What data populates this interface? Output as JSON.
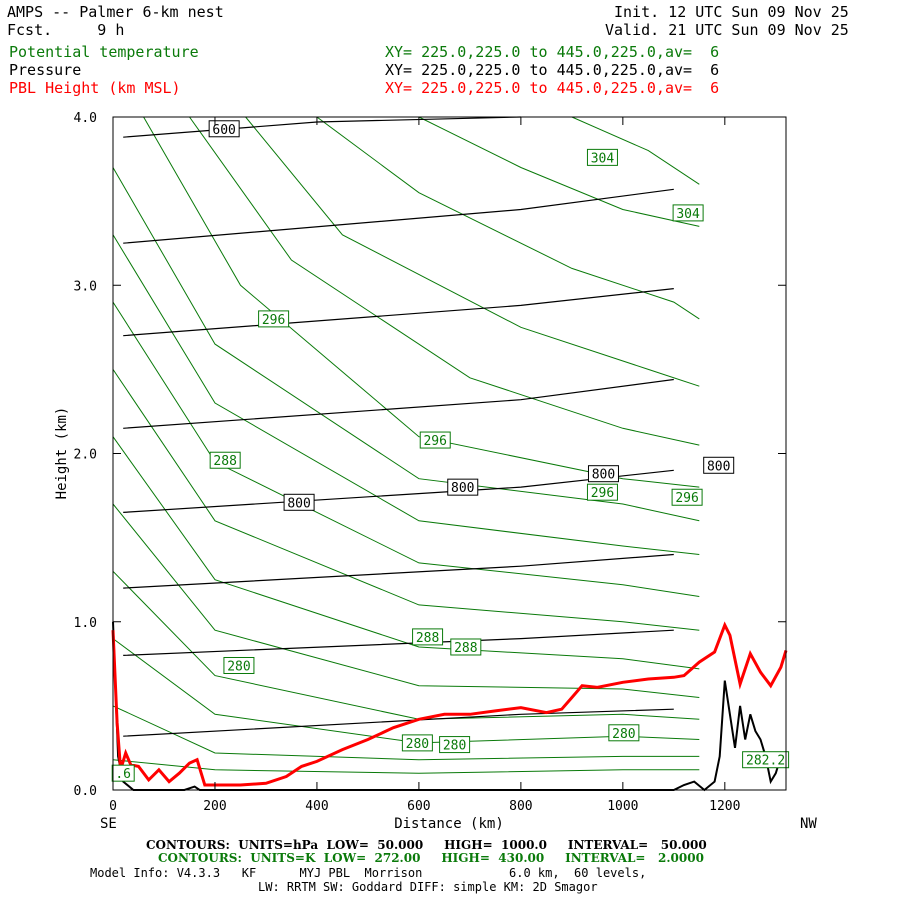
{
  "header": {
    "title": "AMPS -- Palmer 6-km nest",
    "fcst": "Fcst.     9 h",
    "init": "Init. 12 UTC Sun 09 Nov 25",
    "valid": "Valid. 21 UTC Sun 09 Nov 25"
  },
  "legend": [
    {
      "name": "Potential temperature",
      "xy": "XY= 225.0,225.0 to 445.0,225.0,av=  6",
      "color": "#0a7a0a"
    },
    {
      "name": "Pressure",
      "xy": "XY= 225.0,225.0 to 445.0,225.0,av=  6",
      "color": "#000000"
    },
    {
      "name": "PBL Height (km MSL)",
      "xy": "XY= 225.0,225.0 to 445.0,225.0,av=  6",
      "color": "#ff0000"
    }
  ],
  "footer": {
    "pressure_contours": "CONTOURS:  UNITS=hPa  LOW=  50.000     HIGH=  1000.0     INTERVAL=   50.000",
    "theta_contours": "CONTOURS:  UNITS=K  LOW=  272.00     HIGH=  430.00     INTERVAL=   2.0000",
    "model_info": "Model Info: V4.3.3   KF      MYJ PBL  Morrison            6.0 km,  60 levels,",
    "model_info2": "LW: RRTM SW: Goddard DIFF: simple KM: 2D Smagor"
  },
  "chart_data": {
    "type": "line",
    "title": "AMPS -- Palmer 6-km nest",
    "xlabel": "Distance (km)",
    "ylabel": "Height (km)",
    "xlim": [
      0,
      1320
    ],
    "ylim": [
      0,
      4
    ],
    "x_ticks": [
      0,
      200,
      400,
      600,
      800,
      1000,
      1200
    ],
    "x_tick_labels": [
      "0",
      "200",
      "400",
      "600",
      "800",
      "1000",
      "1200"
    ],
    "y_ticks": [
      0,
      1,
      2,
      3,
      4
    ],
    "y_tick_labels": [
      "0.0",
      "1.0",
      "2.0",
      "3.0",
      "4.0"
    ],
    "x_end_labels": {
      "left": "SE",
      "right": "NW"
    },
    "pbl_height": {
      "name": "PBL Height (km MSL)",
      "color": "#ff0000",
      "x": [
        0,
        8,
        15,
        25,
        35,
        50,
        70,
        90,
        110,
        130,
        150,
        165,
        180,
        200,
        250,
        300,
        340,
        370,
        400,
        450,
        500,
        550,
        600,
        650,
        700,
        750,
        800,
        850,
        880,
        900,
        920,
        950,
        1000,
        1050,
        1100,
        1120,
        1150,
        1180,
        1200,
        1210,
        1230,
        1250,
        1270,
        1290,
        1310,
        1320
      ],
      "y": [
        0.95,
        0.4,
        0.12,
        0.22,
        0.15,
        0.14,
        0.06,
        0.12,
        0.05,
        0.1,
        0.16,
        0.18,
        0.03,
        0.03,
        0.03,
        0.04,
        0.08,
        0.14,
        0.17,
        0.24,
        0.3,
        0.37,
        0.42,
        0.45,
        0.45,
        0.47,
        0.49,
        0.46,
        0.48,
        0.55,
        0.62,
        0.61,
        0.64,
        0.66,
        0.67,
        0.68,
        0.76,
        0.82,
        0.98,
        0.92,
        0.63,
        0.81,
        0.7,
        0.62,
        0.73,
        0.83
      ]
    },
    "terrain": {
      "color": "#000000",
      "x": [
        0,
        5,
        10,
        20,
        40,
        60,
        80,
        100,
        120,
        140,
        160,
        170,
        180,
        200,
        1100,
        1120,
        1140,
        1160,
        1180,
        1190,
        1200,
        1210,
        1220,
        1230,
        1240,
        1250,
        1260,
        1270,
        1280,
        1290,
        1300,
        1310,
        1320
      ],
      "y": [
        1.0,
        0.6,
        0.2,
        0.05,
        0.0,
        0.0,
        0.0,
        0.0,
        0.0,
        0.0,
        0.02,
        0.0,
        0.0,
        0.0,
        0.0,
        0.03,
        0.05,
        0.0,
        0.05,
        0.2,
        0.65,
        0.45,
        0.25,
        0.5,
        0.3,
        0.45,
        0.35,
        0.3,
        0.2,
        0.05,
        0.1,
        0.2,
        0.22
      ]
    },
    "pressure_isobars": [
      {
        "hPa": 950,
        "x": [
          20,
          800,
          1100
        ],
        "y": [
          0.32,
          0.45,
          0.48
        ]
      },
      {
        "hPa": 900,
        "x": [
          20,
          800,
          1100
        ],
        "y": [
          0.8,
          0.9,
          0.95
        ]
      },
      {
        "hPa": 850,
        "x": [
          20,
          800,
          1100
        ],
        "y": [
          1.2,
          1.33,
          1.4
        ]
      },
      {
        "hPa": 800,
        "x": [
          20,
          800,
          1100
        ],
        "y": [
          1.65,
          1.8,
          1.9
        ]
      },
      {
        "hPa": 750,
        "x": [
          20,
          800,
          1100
        ],
        "y": [
          2.15,
          2.32,
          2.44
        ]
      },
      {
        "hPa": 700,
        "x": [
          20,
          800,
          1100
        ],
        "y": [
          2.7,
          2.88,
          2.98
        ]
      },
      {
        "hPa": 650,
        "x": [
          20,
          800,
          1100
        ],
        "y": [
          3.25,
          3.45,
          3.57
        ]
      },
      {
        "hPa": 600,
        "x": [
          20,
          400,
          800
        ],
        "y": [
          3.88,
          3.97,
          4.03
        ]
      }
    ],
    "theta_isentropes": [
      {
        "K": 276,
        "x": [
          0,
          200,
          600,
          1000,
          1150
        ],
        "y": [
          0.18,
          0.12,
          0.1,
          0.12,
          0.12
        ]
      },
      {
        "K": 278,
        "x": [
          0,
          200,
          600,
          1000,
          1150
        ],
        "y": [
          0.5,
          0.22,
          0.18,
          0.2,
          0.2
        ]
      },
      {
        "K": 280,
        "x": [
          0,
          200,
          600,
          1000,
          1150
        ],
        "y": [
          0.9,
          0.45,
          0.28,
          0.32,
          0.3
        ]
      },
      {
        "K": 282,
        "x": [
          0,
          200,
          600,
          1000,
          1150
        ],
        "y": [
          1.3,
          0.68,
          0.42,
          0.45,
          0.42
        ]
      },
      {
        "K": 284,
        "x": [
          0,
          200,
          600,
          1000,
          1150
        ],
        "y": [
          1.7,
          0.95,
          0.62,
          0.6,
          0.55
        ]
      },
      {
        "K": 286,
        "x": [
          0,
          200,
          600,
          1000,
          1150
        ],
        "y": [
          2.1,
          1.25,
          0.85,
          0.78,
          0.72
        ]
      },
      {
        "K": 288,
        "x": [
          0,
          200,
          600,
          1000,
          1150
        ],
        "y": [
          2.5,
          1.6,
          1.1,
          1.0,
          0.95
        ]
      },
      {
        "K": 290,
        "x": [
          0,
          200,
          600,
          1000,
          1150
        ],
        "y": [
          2.9,
          1.95,
          1.35,
          1.22,
          1.15
        ]
      },
      {
        "K": 292,
        "x": [
          0,
          200,
          600,
          1000,
          1150
        ],
        "y": [
          3.3,
          2.3,
          1.6,
          1.45,
          1.4
        ]
      },
      {
        "K": 294,
        "x": [
          0,
          200,
          600,
          1000,
          1150
        ],
        "y": [
          3.7,
          2.65,
          1.85,
          1.7,
          1.6
        ]
      },
      {
        "K": 296,
        "x": [
          60,
          250,
          600,
          1000,
          1150
        ],
        "y": [
          4.0,
          3.0,
          2.1,
          1.85,
          1.8
        ]
      },
      {
        "K": 298,
        "x": [
          150,
          350,
          700,
          1000,
          1150
        ],
        "y": [
          4.0,
          3.15,
          2.45,
          2.15,
          2.05
        ]
      },
      {
        "K": 300,
        "x": [
          260,
          450,
          800,
          1050,
          1150
        ],
        "y": [
          4.0,
          3.3,
          2.75,
          2.5,
          2.4
        ]
      },
      {
        "K": 302,
        "x": [
          400,
          600,
          900,
          1100,
          1150
        ],
        "y": [
          4.0,
          3.55,
          3.1,
          2.9,
          2.8
        ]
      },
      {
        "K": 304,
        "x": [
          600,
          800,
          1000,
          1150
        ],
        "y": [
          4.0,
          3.7,
          3.45,
          3.35
        ]
      },
      {
        "K": 306,
        "x": [
          900,
          1050,
          1150
        ],
        "y": [
          4.0,
          3.8,
          3.6
        ]
      }
    ],
    "contour_labels": [
      {
        "text": "600",
        "kind": "pressure",
        "x": 218,
        "y": 3.93
      },
      {
        "text": "800",
        "kind": "pressure",
        "x": 365,
        "y": 1.71
      },
      {
        "text": "800",
        "kind": "pressure",
        "x": 686,
        "y": 1.8
      },
      {
        "text": "800",
        "kind": "pressure",
        "x": 962,
        "y": 1.88
      },
      {
        "text": "800",
        "kind": "pressure",
        "x": 1188,
        "y": 1.93
      },
      {
        "text": "304",
        "kind": "theta",
        "x": 960,
        "y": 3.76
      },
      {
        "text": "304",
        "kind": "theta",
        "x": 1128,
        "y": 3.43
      },
      {
        "text": "296",
        "kind": "theta",
        "x": 315,
        "y": 2.8
      },
      {
        "text": "296",
        "kind": "theta",
        "x": 632,
        "y": 2.08
      },
      {
        "text": "296",
        "kind": "theta",
        "x": 960,
        "y": 1.77
      },
      {
        "text": "296",
        "kind": "theta",
        "x": 1126,
        "y": 1.74
      },
      {
        "text": "288",
        "kind": "theta",
        "x": 220,
        "y": 1.96
      },
      {
        "text": "288",
        "kind": "theta",
        "x": 617,
        "y": 0.91
      },
      {
        "text": "288",
        "kind": "theta",
        "x": 692,
        "y": 0.85
      },
      {
        "text": "280",
        "kind": "theta",
        "x": 247,
        "y": 0.74
      },
      {
        "text": "280",
        "kind": "theta",
        "x": 597,
        "y": 0.28
      },
      {
        "text": "280",
        "kind": "theta",
        "x": 670,
        "y": 0.27
      },
      {
        "text": "280",
        "kind": "theta",
        "x": 1002,
        "y": 0.34
      },
      {
        "text": ".6",
        "kind": "theta",
        "x": 20,
        "y": 0.1
      },
      {
        "text": "282.2",
        "kind": "theta",
        "x": 1280,
        "y": 0.18
      }
    ]
  }
}
